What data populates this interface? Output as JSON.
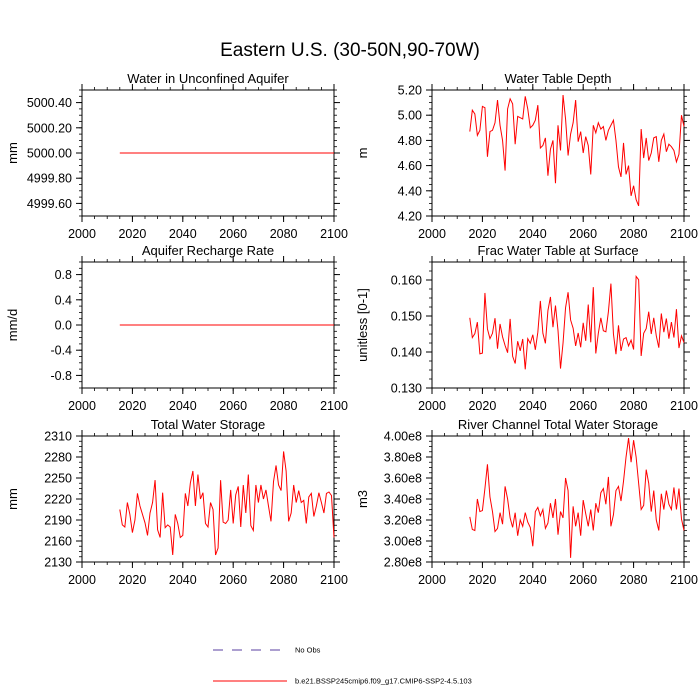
{
  "figure": {
    "title": "Eastern U.S. (30-50N,90-70W)",
    "series_color": "#ff0000",
    "obs_color": "#5a3fa0"
  },
  "legend": {
    "obs_label": "No Obs",
    "model_label": "b.e21.BSSP245cmip6.f09_g17.CMIP6-SSP2-4.5.103"
  },
  "chart_data": [
    {
      "type": "line",
      "title": "Water in Unconfined Aquifer",
      "ylabel": "mm",
      "xlim": [
        2000,
        2100
      ],
      "ylim": [
        4999.5,
        5000.5
      ],
      "xticks": [
        2000,
        2020,
        2040,
        2060,
        2080,
        2100
      ],
      "xtick_labels": [
        "2000",
        "2020",
        "2040",
        "2060",
        "2080",
        "2100"
      ],
      "yticks": [
        4999.6,
        4999.8,
        5000.0,
        5000.2,
        5000.4
      ],
      "ytick_labels": [
        "4999.60",
        "4999.80",
        "5000.00",
        "5000.20",
        "5000.40"
      ],
      "series": [
        {
          "x_start": 2015,
          "values": [
            5000,
            5000,
            5000,
            5000,
            5000,
            5000,
            5000,
            5000,
            5000,
            5000,
            5000,
            5000,
            5000,
            5000,
            5000,
            5000,
            5000,
            5000,
            5000,
            5000,
            5000,
            5000,
            5000,
            5000,
            5000,
            5000,
            5000,
            5000,
            5000,
            5000,
            5000,
            5000,
            5000,
            5000,
            5000,
            5000,
            5000,
            5000,
            5000,
            5000,
            5000,
            5000,
            5000,
            5000,
            5000,
            5000,
            5000,
            5000,
            5000,
            5000,
            5000,
            5000,
            5000,
            5000,
            5000,
            5000,
            5000,
            5000,
            5000,
            5000,
            5000,
            5000,
            5000,
            5000,
            5000,
            5000,
            5000,
            5000,
            5000,
            5000,
            5000,
            5000,
            5000,
            5000,
            5000,
            5000,
            5000,
            5000,
            5000,
            5000,
            5000,
            5000,
            5000,
            5000,
            5000,
            5000
          ]
        }
      ]
    },
    {
      "type": "line",
      "title": "Water Table Depth",
      "ylabel": "m",
      "xlim": [
        2000,
        2100
      ],
      "ylim": [
        4.2,
        5.2
      ],
      "xticks": [
        2000,
        2020,
        2040,
        2060,
        2080,
        2100
      ],
      "xtick_labels": [
        "2000",
        "2020",
        "2040",
        "2060",
        "2080",
        "2100"
      ],
      "yticks": [
        4.2,
        4.4,
        4.6,
        4.8,
        5.0,
        5.2
      ],
      "ytick_labels": [
        "4.20",
        "4.40",
        "4.60",
        "4.80",
        "5.00",
        "5.20"
      ],
      "series": [
        {
          "x_start": 2015,
          "values": [
            4.87,
            5.04,
            5.01,
            4.84,
            4.88,
            5.07,
            5.06,
            4.67,
            4.87,
            4.88,
            4.94,
            5.12,
            4.92,
            4.8,
            4.56,
            5.05,
            5.13,
            5.09,
            4.77,
            4.99,
            4.98,
            4.97,
            5.15,
            5.05,
            4.9,
            4.92,
            4.96,
            5.08,
            4.74,
            4.76,
            4.82,
            4.52,
            4.73,
            4.8,
            4.46,
            4.92,
            4.72,
            5.16,
            4.97,
            4.68,
            4.85,
            4.94,
            5.12,
            4.79,
            4.87,
            4.7,
            4.83,
            4.76,
            4.53,
            4.92,
            4.86,
            4.94,
            4.89,
            4.91,
            4.8,
            4.88,
            4.92,
            4.96,
            4.8,
            4.59,
            4.51,
            4.78,
            4.53,
            4.6,
            4.36,
            4.44,
            4.33,
            4.28,
            4.89,
            4.66,
            4.82,
            4.64,
            4.7,
            4.82,
            4.83,
            4.63,
            4.8,
            4.85,
            4.71,
            4.77,
            4.75,
            4.72,
            4.63,
            4.69,
            5.0,
            4.91
          ]
        }
      ]
    },
    {
      "type": "line",
      "title": "Aquifer Recharge Rate",
      "ylabel": "mm/d",
      "xlim": [
        2000,
        2100
      ],
      "ylim": [
        -1.0,
        1.0
      ],
      "xticks": [
        2000,
        2020,
        2040,
        2060,
        2080,
        2100
      ],
      "xtick_labels": [
        "2000",
        "2020",
        "2040",
        "2060",
        "2080",
        "2100"
      ],
      "yticks": [
        -0.8,
        -0.4,
        0.0,
        0.4,
        0.8
      ],
      "ytick_labels": [
        "-0.8",
        "-0.4",
        "0.0",
        "0.4",
        "0.8"
      ],
      "series": [
        {
          "x_start": 2015,
          "values": [
            0,
            0,
            0,
            0,
            0,
            0,
            0,
            0,
            0,
            0,
            0,
            0,
            0,
            0,
            0,
            0,
            0,
            0,
            0,
            0,
            0,
            0,
            0,
            0,
            0,
            0,
            0,
            0,
            0,
            0,
            0,
            0,
            0,
            0,
            0,
            0,
            0,
            0,
            0,
            0,
            0,
            0,
            0,
            0,
            0,
            0,
            0,
            0,
            0,
            0,
            0,
            0,
            0,
            0,
            0,
            0,
            0,
            0,
            0,
            0,
            0,
            0,
            0,
            0,
            0,
            0,
            0,
            0,
            0,
            0,
            0,
            0,
            0,
            0,
            0,
            0,
            0,
            0,
            0,
            0,
            0,
            0,
            0,
            0,
            0,
            0
          ]
        }
      ]
    },
    {
      "type": "line",
      "title": "Frac Water Table at Surface",
      "ylabel": "unitless [0-1]",
      "xlim": [
        2000,
        2100
      ],
      "ylim": [
        0.13,
        0.165
      ],
      "xticks": [
        2000,
        2020,
        2040,
        2060,
        2080,
        2100
      ],
      "xtick_labels": [
        "2000",
        "2020",
        "2040",
        "2060",
        "2080",
        "2100"
      ],
      "yticks": [
        0.13,
        0.14,
        0.15,
        0.16
      ],
      "ytick_labels": [
        "0.130",
        "0.140",
        "0.150",
        "0.160"
      ],
      "series": [
        {
          "x_start": 2015,
          "values": [
            0.1495,
            0.144,
            0.1451,
            0.1483,
            0.1395,
            0.1397,
            0.1564,
            0.1464,
            0.1437,
            0.1452,
            0.1494,
            0.1409,
            0.1478,
            0.1442,
            0.1418,
            0.1398,
            0.1492,
            0.1388,
            0.1368,
            0.143,
            0.1403,
            0.1436,
            0.1352,
            0.1437,
            0.1424,
            0.1448,
            0.1406,
            0.1455,
            0.1542,
            0.1452,
            0.1424,
            0.1515,
            0.1553,
            0.1469,
            0.1529,
            0.146,
            0.1354,
            0.1425,
            0.1523,
            0.1566,
            0.1489,
            0.1466,
            0.1417,
            0.1453,
            0.1413,
            0.1481,
            0.1431,
            0.1532,
            0.1427,
            0.158,
            0.1396,
            0.1452,
            0.1495,
            0.1459,
            0.1456,
            0.1512,
            0.159,
            0.145,
            0.1394,
            0.1474,
            0.1403,
            0.1436,
            0.144,
            0.1417,
            0.1433,
            0.1407,
            0.161,
            0.1601,
            0.1389,
            0.1452,
            0.1465,
            0.1512,
            0.145,
            0.1495,
            0.1445,
            0.1412,
            0.1507,
            0.1455,
            0.1493,
            0.1437,
            0.1483,
            0.144,
            0.1519,
            0.1411,
            0.1445,
            0.1426
          ]
        }
      ]
    },
    {
      "type": "line",
      "title": "Total Water Storage",
      "ylabel": "mm",
      "xlim": [
        2000,
        2100
      ],
      "ylim": [
        2130,
        2310
      ],
      "xticks": [
        2000,
        2020,
        2040,
        2060,
        2080,
        2100
      ],
      "xtick_labels": [
        "2000",
        "2020",
        "2040",
        "2060",
        "2080",
        "2100"
      ],
      "yticks": [
        2130,
        2160,
        2190,
        2220,
        2250,
        2280,
        2310
      ],
      "ytick_labels": [
        "2130",
        "2160",
        "2190",
        "2220",
        "2250",
        "2280",
        "2310"
      ],
      "series": [
        {
          "x_start": 2015,
          "values": [
            2205,
            2183,
            2180,
            2215,
            2198,
            2172,
            2190,
            2228,
            2210,
            2198,
            2186,
            2168,
            2200,
            2215,
            2247,
            2176,
            2165,
            2229,
            2179,
            2183,
            2180,
            2140,
            2198,
            2185,
            2165,
            2168,
            2228,
            2210,
            2243,
            2260,
            2210,
            2255,
            2220,
            2229,
            2185,
            2180,
            2215,
            2205,
            2140,
            2150,
            2247,
            2187,
            2185,
            2190,
            2233,
            2185,
            2226,
            2238,
            2180,
            2240,
            2200,
            2255,
            2182,
            2175,
            2240,
            2215,
            2240,
            2220,
            2233,
            2210,
            2188,
            2245,
            2268,
            2240,
            2232,
            2288,
            2260,
            2188,
            2200,
            2240,
            2215,
            2232,
            2215,
            2218,
            2185,
            2223,
            2228,
            2195,
            2210,
            2229,
            2215,
            2200,
            2228,
            2230,
            2225,
            2165
          ]
        }
      ]
    },
    {
      "type": "line",
      "title": "River Channel Total Water Storage",
      "ylabel": "m3",
      "xlim": [
        2000,
        2100
      ],
      "ylim": [
        280000000.0,
        400000000.0
      ],
      "xticks": [
        2000,
        2020,
        2040,
        2060,
        2080,
        2100
      ],
      "xtick_labels": [
        "2000",
        "2020",
        "2040",
        "2060",
        "2080",
        "2100"
      ],
      "yticks": [
        280000000.0,
        300000000.0,
        320000000.0,
        340000000.0,
        360000000.0,
        380000000.0,
        400000000.0
      ],
      "ytick_labels": [
        "2.80e8",
        "3.00e8",
        "3.20e8",
        "3.40e8",
        "3.60e8",
        "3.80e8",
        "4.00e8"
      ],
      "series": [
        {
          "x_start": 2015,
          "values": [
            323000000.0,
            311000000.0,
            310000000.0,
            340000000.0,
            328000000.0,
            329000000.0,
            350000000.0,
            373000000.0,
            342000000.0,
            328000000.0,
            309000000.0,
            312000000.0,
            327000000.0,
            316000000.0,
            352000000.0,
            340000000.0,
            322000000.0,
            313000000.0,
            327000000.0,
            305000000.0,
            320000000.0,
            314000000.0,
            327000000.0,
            318000000.0,
            313000000.0,
            295000000.0,
            328000000.0,
            332000000.0,
            324000000.0,
            330000000.0,
            312000000.0,
            317000000.0,
            336000000.0,
            322000000.0,
            340000000.0,
            306000000.0,
            328000000.0,
            322000000.0,
            360000000.0,
            348000000.0,
            284000000.0,
            333000000.0,
            314000000.0,
            327000000.0,
            305000000.0,
            339000000.0,
            326000000.0,
            314000000.0,
            330000000.0,
            310000000.0,
            336000000.0,
            327000000.0,
            346000000.0,
            350000000.0,
            335000000.0,
            361000000.0,
            314000000.0,
            325000000.0,
            348000000.0,
            352000000.0,
            338000000.0,
            357000000.0,
            380000000.0,
            398000000.0,
            375000000.0,
            396000000.0,
            380000000.0,
            355000000.0,
            330000000.0,
            334000000.0,
            368000000.0,
            355000000.0,
            328000000.0,
            348000000.0,
            320000000.0,
            310000000.0,
            345000000.0,
            330000000.0,
            348000000.0,
            335000000.0,
            330000000.0,
            351000000.0,
            330000000.0,
            350000000.0,
            321000000.0,
            310000000.0
          ]
        }
      ]
    }
  ]
}
